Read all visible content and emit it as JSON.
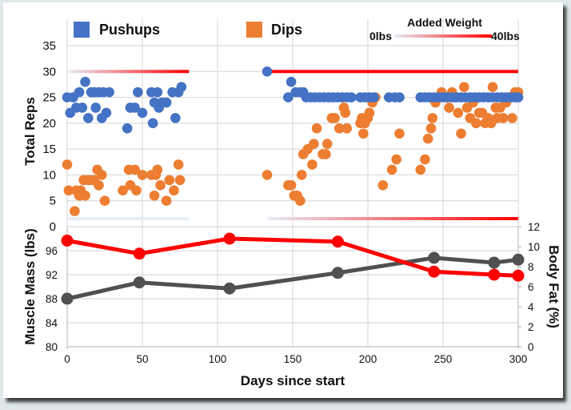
{
  "chart_data": [
    {
      "type": "scatter",
      "title": "",
      "xlabel": "",
      "ylabel": "Total Reps",
      "xlim": [
        0,
        300
      ],
      "ylim": [
        0,
        35
      ],
      "yticks": [
        0,
        5,
        10,
        15,
        20,
        25,
        30,
        35
      ],
      "grid": true,
      "legend": {
        "placement": "top",
        "entries": [
          {
            "name": "Pushups",
            "color": "#4472c4"
          },
          {
            "name": "Dips",
            "color": "#ed7d31"
          }
        ]
      },
      "added_weight_scale": {
        "title": "Added Weight",
        "min_label": "0lbs",
        "max_label": "40lbs",
        "min": 0,
        "max": 40,
        "color_low": "#e6edf7",
        "color_high": "#ff0000"
      },
      "added_weight_bars": [
        {
          "series": "Pushups",
          "x_start": 0,
          "x_end": 81,
          "weight_start": 0,
          "weight_end": 40
        },
        {
          "series": "Pushups",
          "x_start": 133,
          "x_end": 300,
          "weight_start": 40,
          "weight_end": 40
        },
        {
          "series": "Dips",
          "x_start": 0,
          "x_end": 81,
          "weight_start": 0,
          "weight_end": 0
        },
        {
          "series": "Dips",
          "x_start": 133,
          "x_end": 300,
          "weight_start": 0,
          "weight_end": 40
        }
      ],
      "series": [
        {
          "name": "Pushups",
          "color": "#4472c4",
          "points": [
            [
              0,
              25
            ],
            [
              2,
              22
            ],
            [
              4,
              25
            ],
            [
              6,
              23
            ],
            [
              8,
              26
            ],
            [
              10,
              23
            ],
            [
              12,
              28
            ],
            [
              14,
              21
            ],
            [
              16,
              26
            ],
            [
              18,
              26
            ],
            [
              19,
              23
            ],
            [
              21,
              26
            ],
            [
              23,
              21
            ],
            [
              24,
              26
            ],
            [
              26,
              22
            ],
            [
              28,
              26
            ],
            [
              40,
              19
            ],
            [
              42,
              23
            ],
            [
              45,
              23
            ],
            [
              47,
              26
            ],
            [
              50,
              22
            ],
            [
              56,
              26
            ],
            [
              57,
              20
            ],
            [
              58,
              24
            ],
            [
              60,
              26
            ],
            [
              61,
              23
            ],
            [
              63,
              24
            ],
            [
              66,
              24
            ],
            [
              70,
              26
            ],
            [
              72,
              21
            ],
            [
              74,
              26
            ],
            [
              76,
              27
            ],
            [
              133,
              30
            ],
            [
              147,
              25
            ],
            [
              149,
              28
            ],
            [
              152,
              26
            ],
            [
              155,
              26
            ],
            [
              157,
              26
            ],
            [
              159,
              25
            ],
            [
              162,
              25
            ],
            [
              165,
              25
            ],
            [
              168,
              25
            ],
            [
              171,
              25
            ],
            [
              174,
              25
            ],
            [
              177,
              25
            ],
            [
              180,
              25
            ],
            [
              183,
              25
            ],
            [
              186,
              25
            ],
            [
              189,
              25
            ],
            [
              195,
              25
            ],
            [
              198,
              25
            ],
            [
              201,
              25
            ],
            [
              204,
              25
            ],
            [
              214,
              25
            ],
            [
              218,
              25
            ],
            [
              221,
              25
            ],
            [
              235,
              25
            ],
            [
              238,
              25
            ],
            [
              241,
              25
            ],
            [
              244,
              25
            ],
            [
              247,
              25
            ],
            [
              250,
              25
            ],
            [
              253,
              25
            ],
            [
              256,
              25
            ],
            [
              259,
              25
            ],
            [
              262,
              25
            ],
            [
              265,
              25
            ],
            [
              268,
              25
            ],
            [
              271,
              25
            ],
            [
              274,
              25
            ],
            [
              277,
              25
            ],
            [
              280,
              25
            ],
            [
              283,
              25
            ],
            [
              286,
              25
            ],
            [
              289,
              25
            ],
            [
              292,
              25
            ],
            [
              295,
              25
            ],
            [
              298,
              25
            ],
            [
              300,
              25
            ]
          ]
        },
        {
          "name": "Dips",
          "color": "#ed7d31",
          "points": [
            [
              0,
              12
            ],
            [
              1,
              7
            ],
            [
              5,
              3
            ],
            [
              6,
              7
            ],
            [
              8,
              6
            ],
            [
              9,
              7
            ],
            [
              11,
              9
            ],
            [
              12,
              6
            ],
            [
              14,
              9
            ],
            [
              16,
              9
            ],
            [
              18,
              9
            ],
            [
              20,
              11
            ],
            [
              21,
              8
            ],
            [
              23,
              10
            ],
            [
              25,
              5
            ],
            [
              37,
              7
            ],
            [
              41,
              11
            ],
            [
              42,
              8
            ],
            [
              45,
              11
            ],
            [
              46,
              7
            ],
            [
              50,
              10
            ],
            [
              56,
              10
            ],
            [
              58,
              6
            ],
            [
              59,
              10
            ],
            [
              60,
              11
            ],
            [
              62,
              8
            ],
            [
              66,
              5
            ],
            [
              68,
              9
            ],
            [
              71,
              7
            ],
            [
              74,
              12
            ],
            [
              75,
              9
            ],
            [
              133,
              10
            ],
            [
              147,
              8
            ],
            [
              149,
              8
            ],
            [
              151,
              6
            ],
            [
              153,
              6
            ],
            [
              155,
              5
            ],
            [
              156,
              10
            ],
            [
              157,
              14
            ],
            [
              160,
              15
            ],
            [
              163,
              12
            ],
            [
              164,
              16
            ],
            [
              166,
              19
            ],
            [
              170,
              14
            ],
            [
              172,
              14
            ],
            [
              173,
              16
            ],
            [
              176,
              21
            ],
            [
              178,
              21
            ],
            [
              181,
              19
            ],
            [
              184,
              23
            ],
            [
              185,
              22
            ],
            [
              186,
              19
            ],
            [
              195,
              20
            ],
            [
              196,
              21
            ],
            [
              197,
              18
            ],
            [
              198,
              20
            ],
            [
              200,
              21
            ],
            [
              201,
              22
            ],
            [
              203,
              24
            ],
            [
              205,
              25
            ],
            [
              210,
              8
            ],
            [
              216,
              11
            ],
            [
              219,
              13
            ],
            [
              221,
              18
            ],
            [
              235,
              11
            ],
            [
              238,
              13
            ],
            [
              240,
              17
            ],
            [
              242,
              19
            ],
            [
              243,
              21
            ],
            [
              245,
              24
            ],
            [
              247,
              25
            ],
            [
              249,
              26
            ],
            [
              252,
              25
            ],
            [
              254,
              23
            ],
            [
              256,
              26
            ],
            [
              258,
              25
            ],
            [
              260,
              22
            ],
            [
              262,
              18
            ],
            [
              264,
              27
            ],
            [
              266,
              23
            ],
            [
              268,
              21
            ],
            [
              270,
              24
            ],
            [
              272,
              20
            ],
            [
              274,
              22
            ],
            [
              276,
              22
            ],
            [
              278,
              20
            ],
            [
              280,
              21
            ],
            [
              282,
              20
            ],
            [
              283,
              27
            ],
            [
              285,
              23
            ],
            [
              286,
              21
            ],
            [
              288,
              23
            ],
            [
              290,
              21
            ],
            [
              292,
              24
            ],
            [
              294,
              25
            ],
            [
              296,
              21
            ],
            [
              298,
              26
            ],
            [
              300,
              26
            ]
          ]
        }
      ]
    },
    {
      "type": "line",
      "title": "",
      "xlabel": "Days since start",
      "ylabel": "Muscle Mass (lbs)",
      "y2label": "Body Fat (%)",
      "xlim": [
        0,
        300
      ],
      "xticks": [
        0,
        50,
        100,
        150,
        200,
        250,
        300
      ],
      "ylim": [
        80,
        100
      ],
      "yticks": [
        80,
        84,
        88,
        92,
        96
      ],
      "y2lim": [
        0,
        12
      ],
      "y2ticks": [
        0,
        2,
        4,
        6,
        8,
        10,
        12
      ],
      "grid": true,
      "series": [
        {
          "name": "Muscle Mass",
          "axis": "left",
          "color": "#505050",
          "x": [
            0,
            48,
            108,
            180,
            244,
            284,
            300
          ],
          "values": [
            88.0,
            90.7,
            89.7,
            92.3,
            94.8,
            94.0,
            94.5
          ]
        },
        {
          "name": "Body Fat",
          "axis": "right",
          "color": "#ff0000",
          "x": [
            0,
            48,
            108,
            180,
            244,
            284,
            300
          ],
          "values": [
            10.6,
            9.3,
            10.8,
            10.5,
            7.5,
            7.2,
            7.1
          ]
        }
      ]
    }
  ]
}
